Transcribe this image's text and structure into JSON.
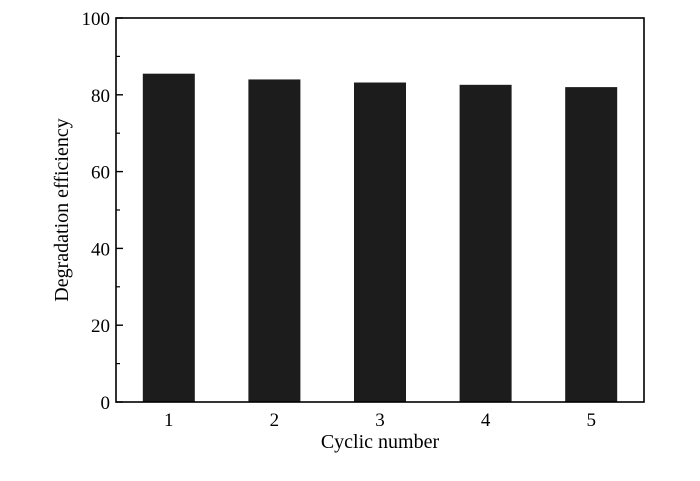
{
  "chart_data": {
    "type": "bar",
    "categories": [
      "1",
      "2",
      "3",
      "4",
      "5"
    ],
    "values": [
      85.5,
      84.0,
      83.2,
      82.6,
      82.0
    ],
    "xlabel": "Cyclic number",
    "ylabel": "Degradation efficiency",
    "ylim": [
      0,
      100
    ],
    "yticks": [
      0,
      20,
      40,
      60,
      80,
      100
    ],
    "grid": false,
    "bar_color": "#1c1c1c"
  }
}
